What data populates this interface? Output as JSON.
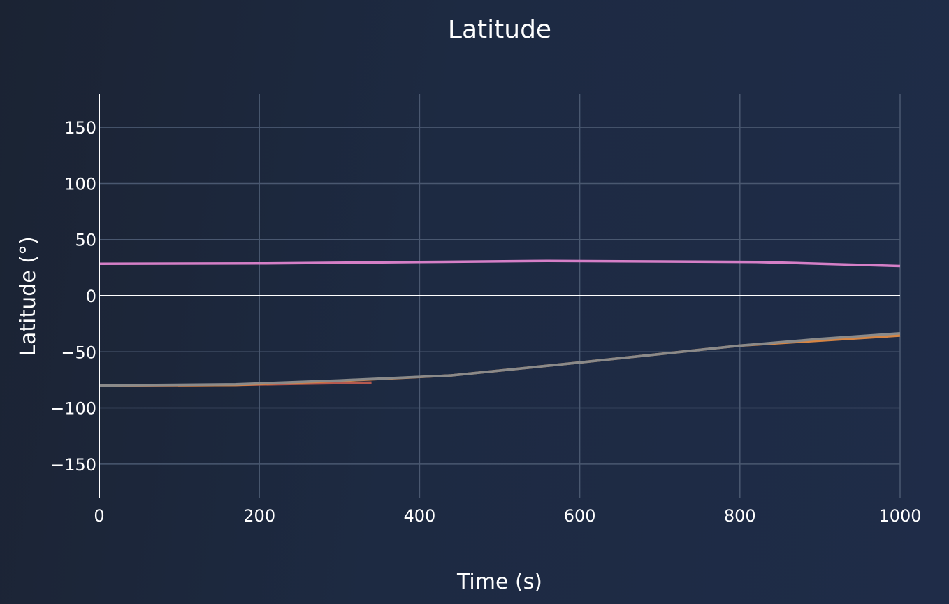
{
  "chart_data": {
    "type": "line",
    "title": "Latitude",
    "xlabel": "Time (s)",
    "ylabel": "Latitude (°)",
    "xlim": [
      0,
      1000
    ],
    "ylim": [
      -180,
      180
    ],
    "x_ticks": [
      {
        "value": 0,
        "label": "0"
      },
      {
        "value": 200,
        "label": "200"
      },
      {
        "value": 400,
        "label": "400"
      },
      {
        "value": 600,
        "label": "600"
      },
      {
        "value": 800,
        "label": "800"
      },
      {
        "value": 1000,
        "label": "1000"
      }
    ],
    "y_ticks": [
      {
        "value": 150,
        "label": "150"
      },
      {
        "value": 100,
        "label": "100"
      },
      {
        "value": 50,
        "label": "50"
      },
      {
        "value": 0,
        "label": "0"
      },
      {
        "value": -50,
        "label": "−50"
      },
      {
        "value": -100,
        "label": "−100"
      },
      {
        "value": -150,
        "label": "−150"
      }
    ],
    "grid": true,
    "legend": "none",
    "series": [
      {
        "color": "#d57fc7",
        "x": [
          0,
          200,
          400,
          560,
          700,
          820,
          900,
          1000
        ],
        "values": [
          28.5,
          28.8,
          30,
          31,
          30.5,
          30,
          28.5,
          26.5
        ]
      },
      {
        "color": "#b5584e",
        "x": [
          0,
          170,
          250,
          340
        ],
        "values": [
          -80,
          -79.5,
          -78.5,
          -77.5
        ]
      },
      {
        "color": "#d68544",
        "x": [
          0,
          170,
          300,
          440,
          600,
          800,
          900,
          1000
        ],
        "values": [
          -80,
          -79.5,
          -76,
          -71,
          -59.5,
          -44.5,
          -40,
          -35.5
        ]
      },
      {
        "color": "#8a8a8a",
        "x": [
          0,
          170,
          300,
          440,
          600,
          800,
          900,
          1000
        ],
        "values": [
          -80,
          -79,
          -75.5,
          -71,
          -59.5,
          -44.5,
          -38.5,
          -33.5
        ]
      }
    ]
  }
}
